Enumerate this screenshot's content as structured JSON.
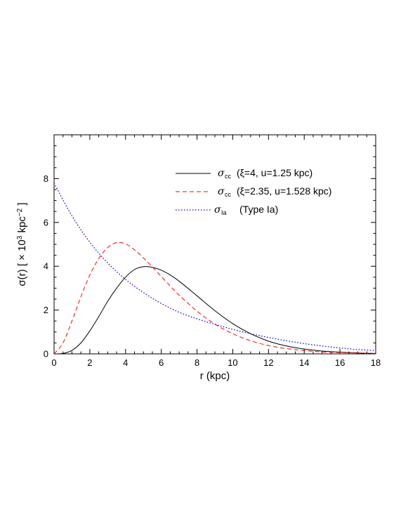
{
  "chart_data": {
    "type": "line",
    "xlabel": "r (kpc)",
    "ylabel": {
      "prefix": "σ(r)   [ × 10",
      "exp1": "3",
      "middle": " kpc",
      "exp2": "−2",
      "suffix": " ]"
    },
    "xlim": [
      0,
      18
    ],
    "ylim": [
      0,
      10
    ],
    "x_ticks": [
      "0",
      "2",
      "4",
      "6",
      "8",
      "10",
      "12",
      "14",
      "16",
      "18"
    ],
    "y_ticks": [
      "0",
      "2",
      "4",
      "6",
      "8"
    ],
    "x_tick_values": [
      0,
      2,
      4,
      6,
      8,
      10,
      12,
      14,
      16,
      18
    ],
    "y_tick_values": [
      0,
      2,
      4,
      6,
      8
    ],
    "grid": false,
    "legend_position": "top-right",
    "series": [
      {
        "symbol": "σ",
        "subscript": "cc",
        "desc": "(ξ=4, u=1.25 kpc)",
        "color": "#000000",
        "style": "solid",
        "x": [
          0,
          0.5,
          1,
          1.5,
          2,
          2.5,
          3,
          3.5,
          4,
          4.5,
          5,
          5.5,
          6,
          6.5,
          7,
          8,
          9,
          10,
          11,
          12,
          13,
          14,
          15,
          16,
          17,
          18
        ],
        "y": [
          0,
          0.02,
          0.16,
          0.5,
          1.05,
          1.7,
          2.4,
          3.0,
          3.5,
          3.85,
          3.98,
          3.95,
          3.82,
          3.6,
          3.32,
          2.65,
          1.97,
          1.38,
          0.92,
          0.58,
          0.36,
          0.22,
          0.13,
          0.08,
          0.04,
          0.02
        ]
      },
      {
        "symbol": "σ",
        "subscript": "cc",
        "desc": "(ξ=2.35, u=1.528 kpc)",
        "color": "#ff0000",
        "style": "dashed",
        "x": [
          0,
          0.5,
          1,
          1.5,
          2,
          2.5,
          3,
          3.5,
          4,
          4.5,
          5,
          5.5,
          6,
          6.5,
          7,
          8,
          9,
          10,
          11,
          12,
          13,
          14,
          15,
          16,
          17,
          18
        ],
        "y": [
          0,
          0.5,
          1.5,
          2.6,
          3.6,
          4.35,
          4.85,
          5.08,
          5.02,
          4.75,
          4.38,
          3.97,
          3.53,
          3.1,
          2.68,
          1.95,
          1.36,
          0.92,
          0.6,
          0.38,
          0.24,
          0.15,
          0.09,
          0.06,
          0.04,
          0.02
        ]
      },
      {
        "symbol": "σ",
        "subscript": "Ia",
        "desc": "(Type Ia)",
        "color": "#0000ff",
        "style": "dotted",
        "x": [
          0,
          1,
          2,
          3,
          4,
          5,
          6,
          7,
          8,
          9,
          10,
          11,
          12,
          13,
          14,
          15,
          16,
          17,
          18
        ],
        "y": [
          7.8,
          6.3,
          5.1,
          4.15,
          3.4,
          2.8,
          2.3,
          1.9,
          1.6,
          1.35,
          1.12,
          0.92,
          0.75,
          0.6,
          0.47,
          0.36,
          0.27,
          0.2,
          0.15
        ]
      }
    ]
  }
}
